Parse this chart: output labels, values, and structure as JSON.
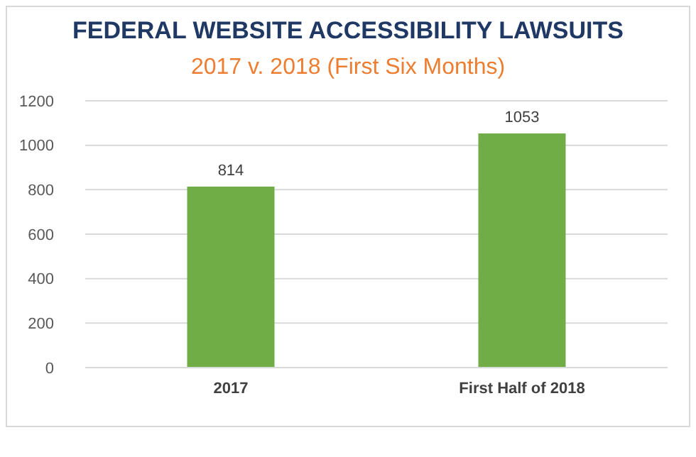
{
  "chart_data": {
    "type": "bar",
    "title": "FEDERAL WEBSITE ACCESSIBILITY LAWSUITS",
    "subtitle": "2017 v. 2018 (First Six Months)",
    "categories": [
      "2017",
      "First Half of 2018"
    ],
    "values": [
      814,
      1053
    ],
    "color": "#70ad47",
    "ylim": [
      0,
      1200
    ],
    "yticks": [
      0,
      200,
      400,
      600,
      800,
      1000,
      1200
    ],
    "grid": "y",
    "data_labels": true
  }
}
